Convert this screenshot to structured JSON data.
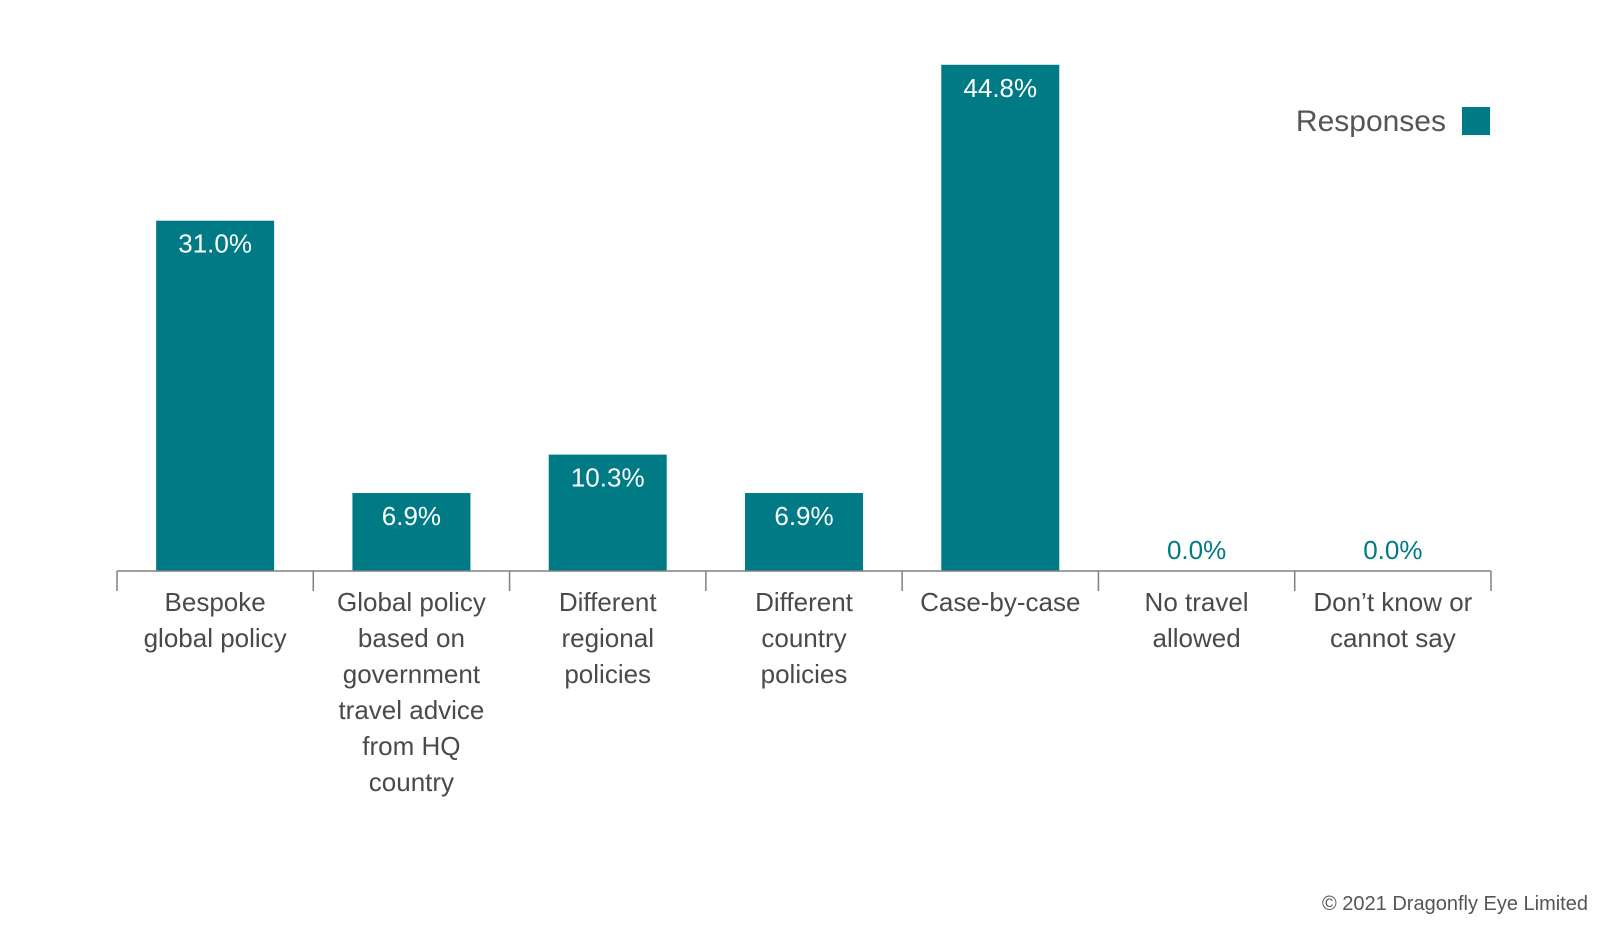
{
  "colors": {
    "bar": "#007b86",
    "bar_label_inside": "#ffffff",
    "bar_label_outside": "#007b86",
    "axis": "#808080",
    "text": "#4a4a4a"
  },
  "legend": {
    "label": "Responses"
  },
  "copyright": "© 2021 Dragonfly Eye Limited",
  "chart_data": {
    "type": "bar",
    "title": "",
    "xlabel": "",
    "ylabel": "",
    "ylim": [
      0,
      50
    ],
    "grid": false,
    "legend_position": "top-right",
    "categories": [
      [
        "Bespoke",
        "global policy"
      ],
      [
        "Global policy",
        "based on",
        "government",
        "travel advice",
        "from HQ",
        "country"
      ],
      [
        "Different",
        "regional",
        "policies"
      ],
      [
        "Different",
        "country",
        "policies"
      ],
      [
        "Case-by-case"
      ],
      [
        "No travel",
        "allowed"
      ],
      [
        "Don’t know or",
        "cannot say"
      ]
    ],
    "series": [
      {
        "name": "Responses",
        "values": [
          31.0,
          6.9,
          10.3,
          6.9,
          44.8,
          0.0,
          0.0
        ],
        "labels": [
          "31.0%",
          "6.9%",
          "10.3%",
          "6.9%",
          "44.8%",
          "0.0%",
          "0.0%"
        ]
      }
    ]
  }
}
